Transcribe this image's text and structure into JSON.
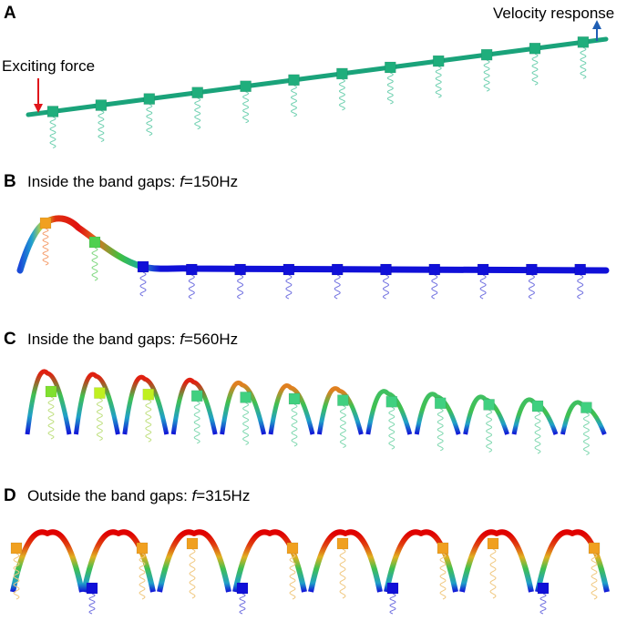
{
  "panels": [
    {
      "letter": "A",
      "title": ""
    },
    {
      "letter": "B",
      "title": "Inside the band gaps: ",
      "freq": "=150Hz"
    },
    {
      "letter": "C",
      "title": "Inside the band gaps: ",
      "freq": "=560Hz"
    },
    {
      "letter": "D",
      "title": "Outside the band gaps: ",
      "freq": "=315Hz"
    }
  ],
  "freq_symbol": "f",
  "annotations": {
    "exciting_force": "Exciting force",
    "velocity_response": "Velocity response"
  },
  "colors": {
    "beam_static": "#1aa37a",
    "mass_static": "#1fae7c",
    "force_arrow": "#e0161b",
    "response_arrow": "#1f5fb4",
    "low": "#1010d8",
    "high": "#e00000"
  },
  "masses_per_beam": 12
}
